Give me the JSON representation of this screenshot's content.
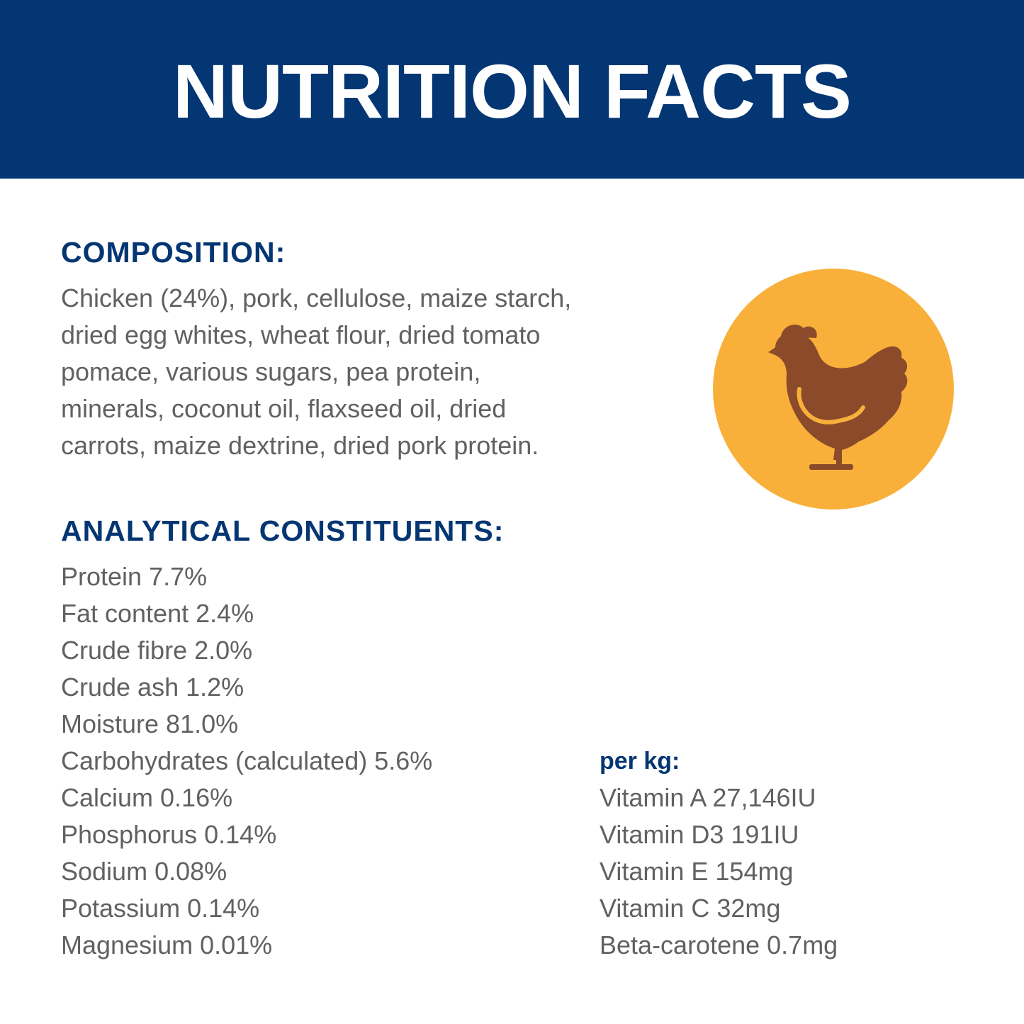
{
  "header": {
    "title": "NUTRITION FACTS",
    "background_color": "#033672"
  },
  "composition": {
    "heading": "COMPOSITION:",
    "lines": [
      "Chicken (24%), pork, cellulose, maize starch,",
      "dried egg whites, wheat flour, dried tomato",
      "pomace, various sugars, pea protein,",
      "minerals, coconut oil, flaxseed oil, dried",
      "carrots, maize dextrine, dried pork protein."
    ]
  },
  "analytical": {
    "heading": "ANALYTICAL CONSTITUENTS:",
    "items": [
      "Protein 7.7%",
      "Fat content 2.4%",
      "Crude fibre 2.0%",
      "Crude ash 1.2%",
      "Moisture 81.0%",
      "Carbohydrates (calculated) 5.6%",
      "Calcium 0.16%",
      "Phosphorus 0.14%",
      "Sodium 0.08%",
      "Potassium 0.14%",
      "Magnesium 0.01%"
    ]
  },
  "vitamins": {
    "heading": "per kg:",
    "items": [
      "Vitamin A 27,146IU",
      "Vitamin D3 191IU",
      "Vitamin E 154mg",
      "Vitamin C 32mg",
      "Beta-carotene 0.7mg"
    ]
  },
  "badge": {
    "icon": "chicken-icon",
    "circle_color": "#F8B03B",
    "chicken_color": "#8B4B2A",
    "wing_color": "#F8B03B"
  },
  "colors": {
    "heading": "#033672",
    "body_text": "#616161"
  }
}
